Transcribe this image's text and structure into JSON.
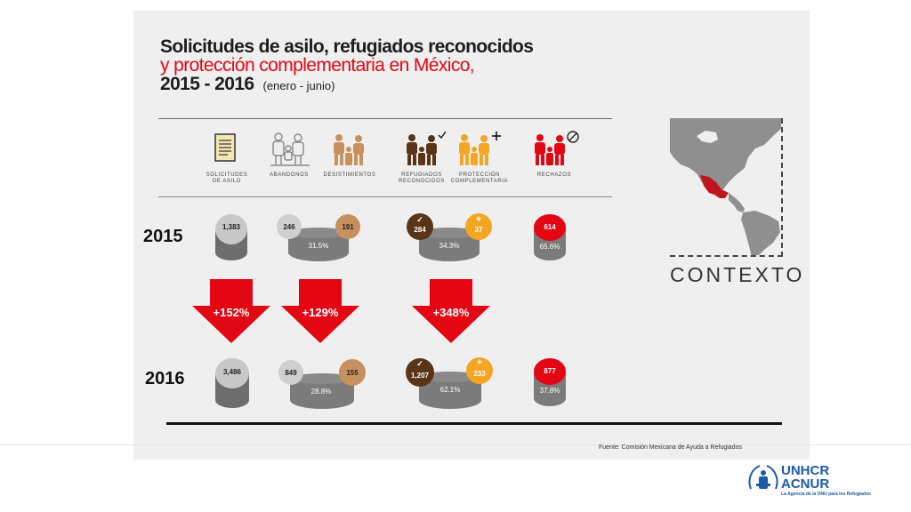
{
  "title": {
    "line1": "Solicitudes de asilo, refugiados reconocidos",
    "line2": "y protección complementaria en México,",
    "years": "2015 - 2016",
    "period": "(enero - junio)"
  },
  "categories": [
    {
      "id": "solicitudes",
      "label_1": "SOLICITUDES",
      "label_2": "DE ASILO"
    },
    {
      "id": "abandonos",
      "label_1": "ABANDONOS",
      "label_2": ""
    },
    {
      "id": "desistimientos",
      "label_1": "DESISTIMIENTOS",
      "label_2": ""
    },
    {
      "id": "refugiados",
      "label_1": "REFUGIADOS",
      "label_2": "RECONOCIDOS"
    },
    {
      "id": "proteccion",
      "label_1": "PROTECCIÓN",
      "label_2": "COMPLEMENTARIA"
    },
    {
      "id": "rechazos",
      "label_1": "RECHAZOS",
      "label_2": ""
    }
  ],
  "y2015": {
    "label": "2015",
    "solicitudes": "1,383",
    "abandonos": "246",
    "desistimientos": "191",
    "abandonos_pct": "31.5%",
    "refugiados": "284",
    "proteccion": "37",
    "reconocidos_pct": "34.3%",
    "rechazos": "614",
    "rechazos_pct": "65.6%"
  },
  "y2016": {
    "label": "2016",
    "solicitudes": "3,486",
    "abandonos": "849",
    "desistimientos": "155",
    "abandonos_pct": "28.8%",
    "refugiados": "1,207",
    "proteccion": "233",
    "reconocidos_pct": "62.1%",
    "rechazos": "877",
    "rechazos_pct": "37.8%"
  },
  "changes": {
    "solicitudes": "+152%",
    "abandonos": "+129%",
    "reconocidos": "+348%"
  },
  "context_label": "CONTEXTO",
  "source": "Fuente: Comisión Mexicana de Ayuda a Refugiados",
  "logo": {
    "name1": "UNHCR",
    "name2": "ACNUR",
    "tagline": "La Agencia de la ONU para los Refugiados"
  },
  "colors": {
    "red": "#e30613",
    "gray": "#7b7b7b",
    "tan": "#c6915d",
    "brown": "#5a3416",
    "orange": "#f4a623"
  }
}
